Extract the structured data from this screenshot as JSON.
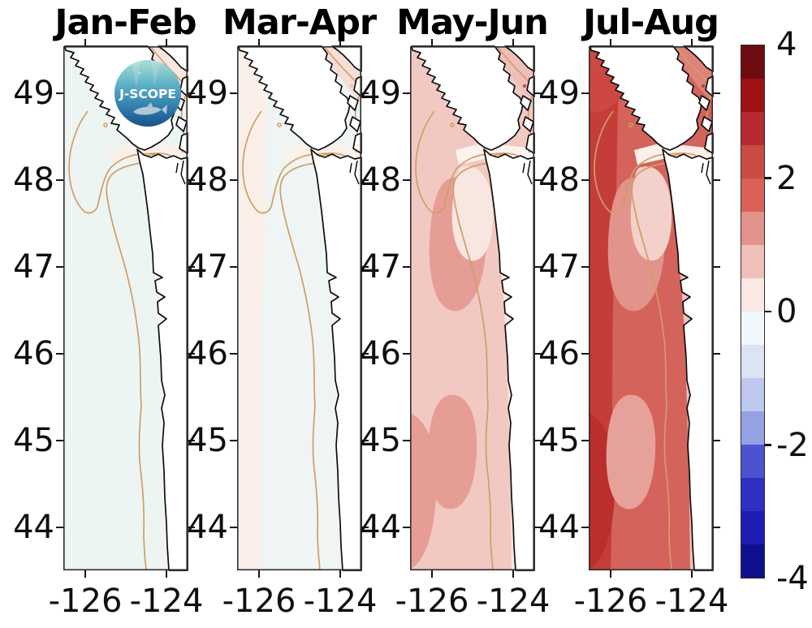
{
  "figure": {
    "background": "#ffffff",
    "frame_color": "#2e2e2e",
    "tick_color": "#151515",
    "coastline_color": "#0d0d0d",
    "land_color": "#ffffff",
    "isobath_color": "#cf9e66"
  },
  "panels": [
    {
      "id": "jan-feb",
      "title": "Jan-Feb",
      "lat_ticks": [
        "49",
        "48",
        "47",
        "46",
        "45",
        "44"
      ],
      "lon_ticks": [
        "-126",
        "-124"
      ],
      "has_logo": true,
      "zones": {
        "base": "#edf5f3",
        "west": null,
        "sw": null,
        "nw": null,
        "mid1": null,
        "mid2": null,
        "hook": null,
        "coast": "#fbf1ea",
        "strait": "#fbf1ea",
        "chan": "#f8e7e0",
        "specks": "#f3cdc6"
      }
    },
    {
      "id": "mar-apr",
      "title": "Mar-Apr",
      "lat_ticks": [
        "49",
        "48",
        "47",
        "46",
        "45",
        "44"
      ],
      "lon_ticks": [
        "-126",
        "-124"
      ],
      "has_logo": false,
      "zones": {
        "base": "#eef5f4",
        "west": "#faf0e9",
        "sw": null,
        "nw": null,
        "mid1": null,
        "mid2": null,
        "hook": null,
        "coast": "#faf0e9",
        "strait": "#fbf2ec",
        "chan": "#f6ddd5",
        "specks": "#eec0b9"
      }
    },
    {
      "id": "may-jun",
      "title": "May-Jun",
      "lat_ticks": [
        "49",
        "48",
        "47",
        "46",
        "45",
        "44"
      ],
      "lon_ticks": [
        "-126",
        "-124"
      ],
      "has_logo": false,
      "zones": {
        "base": "#f2c9c2",
        "west": null,
        "sw": "#e69d96",
        "nw": null,
        "mid1": "#e69d96",
        "mid2": "#e69d96",
        "hook": "#f8e7e0",
        "coast": "#f8e7e0",
        "strait": "#fdf3ee",
        "chan": "#eec0b9",
        "specks": "#cf4a43"
      }
    },
    {
      "id": "jul-aug",
      "title": "Jul-Aug",
      "lat_ticks": [
        "49",
        "48",
        "47",
        "46",
        "45",
        "44"
      ],
      "lon_ticks": [
        "-126",
        "-124"
      ],
      "has_logo": false,
      "zones": {
        "base": "#d4635c",
        "west": "#c43d38",
        "sw": "#ba2f2c",
        "nw": "#cc4841",
        "mid1": "#e2938c",
        "mid2": "#e6a29a",
        "hook": "#f3d0c9",
        "coast": "#efc2bb",
        "strait": "#fbf0ea",
        "chan": "#dd837b",
        "specks": "#c43d38"
      }
    }
  ],
  "logo": {
    "text": "J-SCOPE",
    "gradient": [
      "#a8ded6",
      "#62b4c6",
      "#3c8db6",
      "#24689e",
      "#1b5286"
    ],
    "fish_color": "#bdd3d8"
  },
  "colorbar": {
    "tick_labels": [
      "4",
      "2",
      "0",
      "-2",
      "-4"
    ],
    "levels": [
      "#6d0d11",
      "#9d1214",
      "#b62a31",
      "#ca4a44",
      "#d96158",
      "#e2938c",
      "#efc0ba",
      "#f9e9e2",
      "#f1f7fa",
      "#dce3f3",
      "#bfc8ee",
      "#96a1e4",
      "#4d52d1",
      "#2f2fc4",
      "#1f1cb3",
      "#10108e"
    ]
  },
  "chart_data": {
    "type": "heatmap",
    "subtype": "geographic anomaly maps, Pacific Northwest coast (Vancouver Island / Washington / Oregon)",
    "title": "",
    "panels": [
      {
        "title": "Jan-Feb",
        "approx_anomaly": {
          "offshore": -0.1,
          "nearshore_strip": 0.3,
          "strait_of_juan_de_fuca": 0.2,
          "ne_channel": 0.6
        }
      },
      {
        "title": "Mar-Apr",
        "approx_anomaly": {
          "offshore_west": 0.2,
          "mid_shelf": -0.1,
          "nearshore_strip": 0.3,
          "ne_channel": 0.8
        }
      },
      {
        "title": "May-Jun",
        "approx_anomaly": {
          "offshore": 0.8,
          "warm_patches": 1.3,
          "nearshore_strip": 0.3,
          "strait_of_juan_de_fuca": 0.1,
          "ne_channel": 0.9
        }
      },
      {
        "title": "Jul-Aug",
        "approx_anomaly": {
          "offshore_west": 2.3,
          "offshore": 1.8,
          "mid_shelf": 1.2,
          "nearshore_strip": 0.8,
          "strait_of_juan_de_fuca": 0.1,
          "ne_channel": 1.7
        }
      }
    ],
    "x_axis": {
      "label": "",
      "ticks": [
        -126,
        -124
      ],
      "range": [
        -126.55,
        -123.5
      ]
    },
    "y_axis": {
      "label": "",
      "ticks": [
        49,
        48,
        47,
        46,
        45,
        44
      ],
      "range": [
        43.5,
        49.55
      ]
    },
    "colorbar": {
      "range": [
        -4,
        4
      ],
      "ticks": [
        4,
        2,
        0,
        -2,
        -4
      ],
      "n_levels": 16
    },
    "legend_position": "right",
    "grid": false
  }
}
